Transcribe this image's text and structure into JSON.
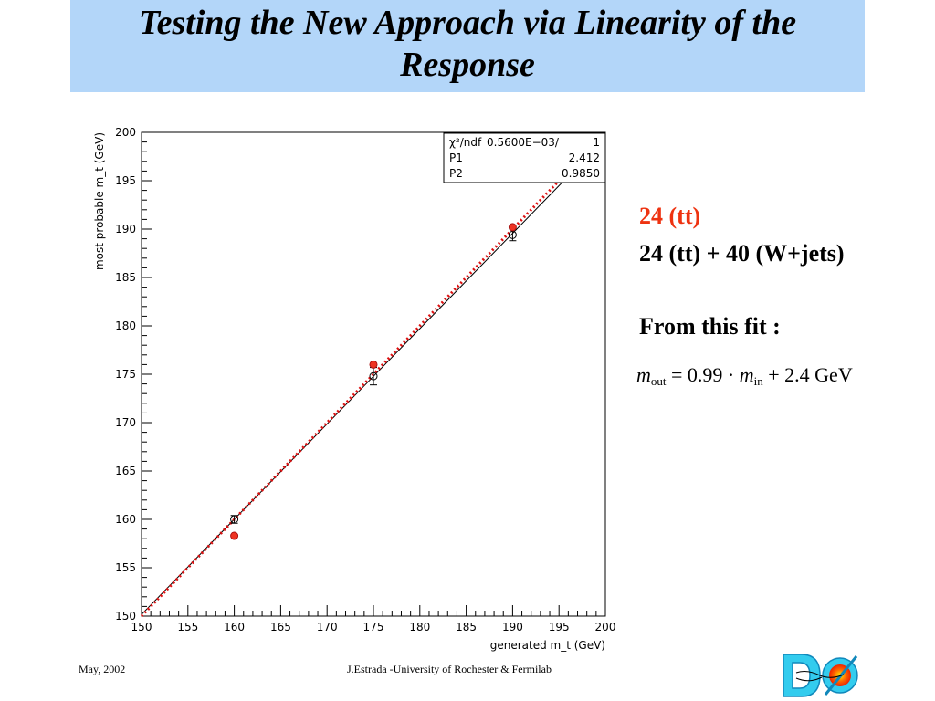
{
  "slide": {
    "title": "Testing the New Approach via Linearity of the Response",
    "legend_item_1": "24 (tt)",
    "legend_item_2": "24 (tt) + 40 (W+jets)",
    "fit_heading": "From this fit :",
    "formula": {
      "m1": "m",
      "sub1": "out",
      "eq": "= 0.99 · ",
      "m2": "m",
      "sub2": "in",
      "rest": " + 2.4 GeV"
    },
    "footer_date": "May, 2002",
    "footer_author": "J.Estrada -University of Rochester & Fermilab",
    "logo_text": "DØ"
  },
  "chart_data": {
    "type": "scatter",
    "xlabel": "generated m_t (GeV)",
    "ylabel": "most probable m_t (GeV)",
    "xlim": [
      150,
      200
    ],
    "ylim": [
      150,
      200
    ],
    "xticks": [
      150,
      155,
      160,
      165,
      170,
      175,
      180,
      185,
      190,
      195,
      200
    ],
    "yticks": [
      150,
      155,
      160,
      165,
      170,
      175,
      180,
      185,
      190,
      195,
      200
    ],
    "grid": false,
    "series": [
      {
        "marker": "open-circle",
        "color": "#000000",
        "points": [
          {
            "x": 160,
            "y": 160.0,
            "err": 0.4
          },
          {
            "x": 175,
            "y": 174.8,
            "err": 0.9
          },
          {
            "x": 190,
            "y": 189.4,
            "err": 0.6
          }
        ]
      },
      {
        "marker": "filled-circle",
        "color": "#ee3322",
        "points": [
          {
            "x": 160,
            "y": 158.3
          },
          {
            "x": 175,
            "y": 176.0
          },
          {
            "x": 190,
            "y": 190.2
          }
        ]
      }
    ],
    "fit_line": {
      "slope": 0.985,
      "intercept": 2.412,
      "color": "#000000"
    },
    "reference_line": {
      "slope": 1.0,
      "intercept": 0,
      "color": "#dd1111",
      "style": "dotted"
    },
    "stats_box": {
      "placement": "top-right",
      "rows": [
        [
          "χ²/ndf",
          "0.5600E−03/",
          "1"
        ],
        [
          "P1",
          "",
          "2.412"
        ],
        [
          "P2",
          "",
          "0.9850"
        ]
      ]
    }
  }
}
